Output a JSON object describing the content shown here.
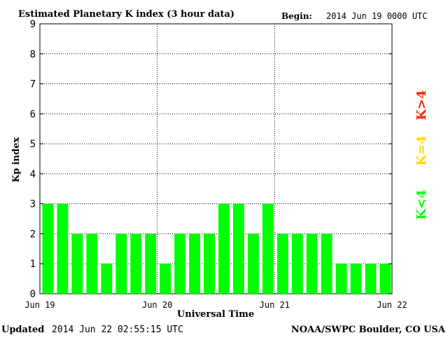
{
  "header": {
    "title": "Estimated Planetary K index (3 hour data)",
    "begin_label": "Begin:",
    "begin_value": "2014 Jun 19 0000 UTC"
  },
  "footer": {
    "updated_label": "Updated",
    "updated_value": "2014 Jun 22 02:55:15 UTC",
    "source": "NOAA/SWPC Boulder, CO USA"
  },
  "colors": {
    "bar_low": "#00ff00",
    "bar_mid": "#ffd700",
    "bar_high": "#ff2200"
  },
  "legend": {
    "high": "K>4",
    "mid": "K=4",
    "low": "K<4"
  },
  "chart_data": {
    "type": "bar",
    "title": "Estimated Planetary K index (3 hour data)",
    "xlabel": "Universal Time",
    "ylabel": "Kp index",
    "ylim": [
      0,
      9
    ],
    "yticks": [
      "0",
      "1",
      "2",
      "3",
      "4",
      "5",
      "6",
      "7",
      "8",
      "9"
    ],
    "xticks": [
      "Jun 19",
      "Jun 20",
      "Jun 21",
      "Jun 22"
    ],
    "grid": true,
    "values": [
      3,
      3,
      2,
      2,
      1,
      2,
      2,
      2,
      1,
      2,
      2,
      2,
      3,
      3,
      2,
      3,
      2,
      2,
      2,
      2,
      1,
      1,
      1,
      1
    ]
  }
}
